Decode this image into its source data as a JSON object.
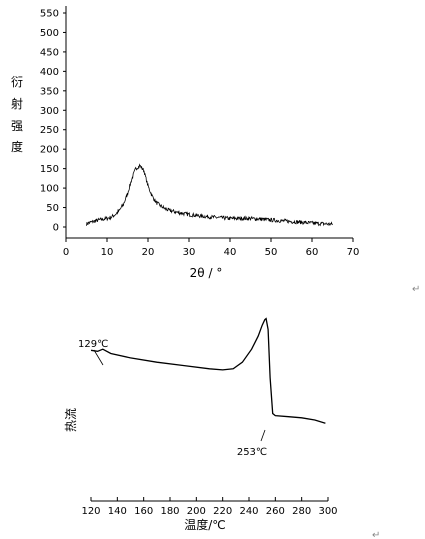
{
  "chart_data": [
    {
      "type": "line",
      "title": "",
      "xlabel": "2θ / °",
      "ylabel_chars": [
        "衍",
        "射",
        "强",
        "度"
      ],
      "xlim": [
        0,
        70
      ],
      "ylim": [
        0,
        550
      ],
      "x_ticks": [
        0,
        10,
        20,
        30,
        40,
        50,
        60,
        70
      ],
      "y_ticks": [
        0,
        50,
        100,
        150,
        200,
        250,
        300,
        350,
        400,
        450,
        500,
        550
      ],
      "series": [
        {
          "x": [
            5,
            6,
            7,
            8,
            9,
            10,
            11,
            12,
            13,
            14,
            15,
            16,
            17,
            18,
            19,
            20,
            21,
            22,
            23,
            24,
            25,
            27,
            30,
            33,
            36,
            40,
            45,
            50,
            55,
            60,
            65
          ],
          "values": [
            8,
            12,
            15,
            18,
            20,
            22,
            25,
            32,
            42,
            58,
            85,
            122,
            150,
            158,
            145,
            105,
            80,
            63,
            55,
            48,
            43,
            38,
            32,
            28,
            25,
            22,
            22,
            18,
            14,
            10,
            7
          ]
        }
      ],
      "noise_amplitude": 10
    },
    {
      "type": "line",
      "title": "",
      "xlabel": "温度/℃",
      "ylabel": "热流",
      "xlim": [
        120,
        300
      ],
      "x_ticks": [
        120,
        140,
        160,
        180,
        200,
        220,
        240,
        260,
        280,
        300
      ],
      "y_axis_shown": false,
      "y_relative_range": [
        0,
        100
      ],
      "series": [
        {
          "x": [
            120,
            125,
            129,
            135,
            150,
            170,
            190,
            210,
            220,
            228,
            235,
            242,
            247,
            250,
            252,
            253,
            254.5,
            256,
            258,
            260,
            270,
            280,
            290,
            298
          ],
          "values": [
            75,
            74,
            76,
            72,
            68,
            64,
            61,
            58,
            57,
            58,
            64,
            76,
            88,
            98,
            103,
            104,
            94,
            50,
            17,
            15,
            14,
            13,
            11,
            8
          ]
        }
      ],
      "annotations": [
        {
          "text": "129℃",
          "x": 129
        },
        {
          "text": "253℃",
          "x": 253
        }
      ]
    }
  ],
  "paragraph_marks": [
    "↵",
    "↵"
  ]
}
